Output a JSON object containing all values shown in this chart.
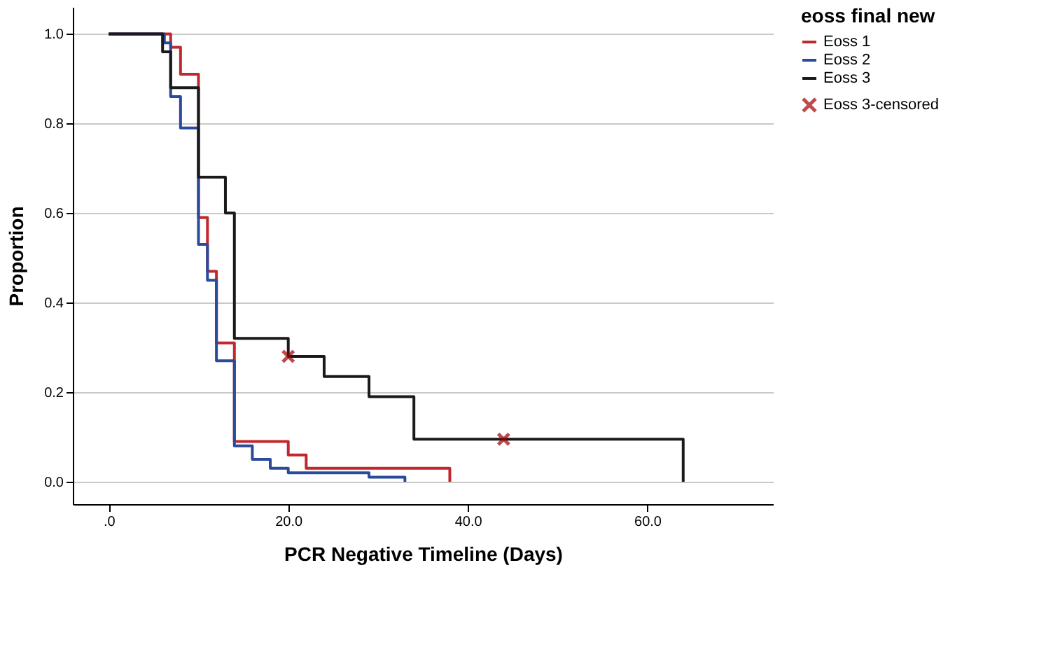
{
  "chart_data": {
    "type": "step",
    "xlabel": "PCR Negative Timeline (Days)",
    "ylabel": "Proportion",
    "legend_title": "eoss final new",
    "legend": "top right",
    "xlim": [
      -4,
      74
    ],
    "ylim": [
      -0.05,
      1.06
    ],
    "xticks": [
      {
        "value": 0,
        "label": ".0"
      },
      {
        "value": 20,
        "label": "20.0"
      },
      {
        "value": 40,
        "label": "40.0"
      },
      {
        "value": 60,
        "label": "60.0"
      }
    ],
    "yticks": [
      {
        "value": 0,
        "label": "0.0"
      },
      {
        "value": 0.2,
        "label": "0.2"
      },
      {
        "value": 0.4,
        "label": "0.4"
      },
      {
        "value": 0.6,
        "label": "0.6"
      },
      {
        "value": 0.8,
        "label": "0.8"
      },
      {
        "value": 1,
        "label": "1.0"
      }
    ],
    "grid": "y",
    "series": [
      {
        "name": "Eoss 1",
        "color": "#c0282d",
        "x": [
          0,
          6.9,
          8,
          10,
          11,
          12,
          14,
          20,
          22,
          38
        ],
        "values": [
          1,
          0.97,
          0.91,
          0.59,
          0.47,
          0.31,
          0.09,
          0.06,
          0.03,
          0
        ]
      },
      {
        "name": "Eoss 2",
        "color": "#2a4a9a",
        "x": [
          0,
          6.2,
          6.9,
          8,
          10,
          11,
          12,
          14,
          16,
          18,
          20,
          29,
          33
        ],
        "values": [
          1,
          0.98,
          0.86,
          0.79,
          0.53,
          0.45,
          0.27,
          0.08,
          0.05,
          0.03,
          0.02,
          0.01,
          0
        ]
      },
      {
        "name": "Eoss 3",
        "color": "#1a1a1a",
        "x": [
          0,
          6,
          6.9,
          10,
          13,
          14,
          20,
          24,
          29,
          34,
          64
        ],
        "values": [
          1,
          0.96,
          0.88,
          0.68,
          0.6,
          0.32,
          0.28,
          0.235,
          0.19,
          0.095,
          0
        ]
      },
      {
        "name": "Eoss 3-censored",
        "color": "#a00000",
        "type": "scatter",
        "marker": "cross",
        "x": [
          20,
          44
        ],
        "values": [
          0.28,
          0.095
        ]
      }
    ]
  }
}
